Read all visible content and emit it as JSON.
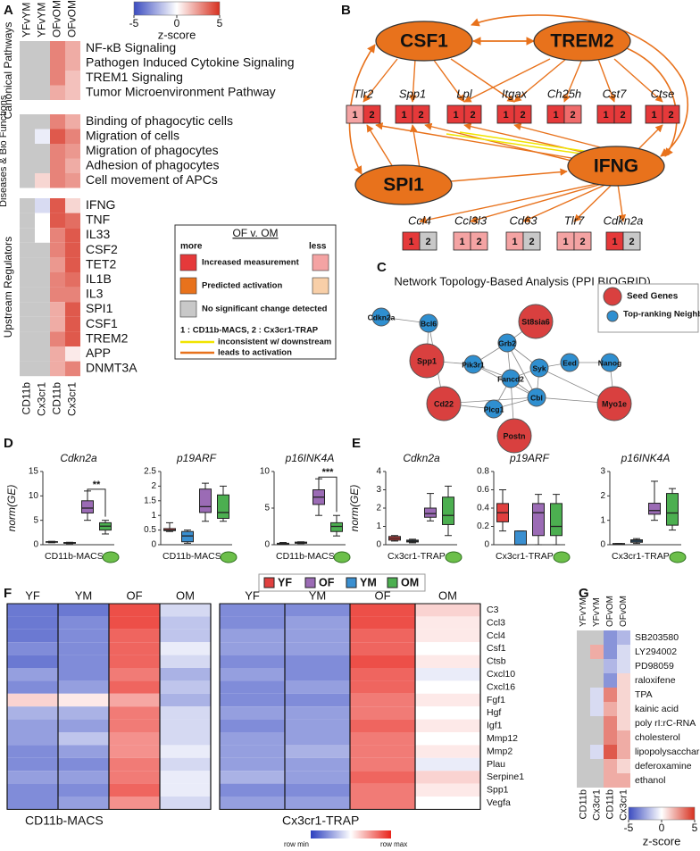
{
  "panel_labels": [
    "A",
    "B",
    "C",
    "D",
    "E",
    "F",
    "G"
  ],
  "A": {
    "columns": [
      "YFvYM",
      "YFvYM",
      "OFvOM",
      "OFvOM"
    ],
    "column_sources": [
      "CD11b",
      "Cx3cr1",
      "CD11b",
      "Cx3cr1"
    ],
    "colorbar": {
      "label": "z-score",
      "lim": [
        -5,
        5
      ],
      "ticks": [
        -5,
        0,
        5
      ]
    },
    "sections": [
      {
        "name": "Canonical Pathways",
        "rows": [
          {
            "label": "NF-κB Signaling",
            "values": [
              null,
              null,
              3,
              2
            ]
          },
          {
            "label": "Pathogen Induced Cytokine Signaling",
            "values": [
              null,
              null,
              3,
              2
            ]
          },
          {
            "label": "TREM1 Signaling",
            "values": [
              null,
              null,
              3,
              1.5
            ]
          },
          {
            "label": "Tumor Microenvironment Pathway",
            "values": [
              null,
              null,
              2,
              1.5
            ]
          }
        ]
      },
      {
        "name": "Diseases & Bio Functions",
        "rows": [
          {
            "label": "Binding of phagocytic cells",
            "values": [
              null,
              null,
              3,
              2
            ]
          },
          {
            "label": "Migration of cells",
            "values": [
              null,
              -0.5,
              4,
              3
            ]
          },
          {
            "label": "Migration of phagocytes",
            "values": [
              null,
              null,
              3,
              2.5
            ]
          },
          {
            "label": "Adhesion of phagocytes",
            "values": [
              null,
              null,
              3,
              2
            ]
          },
          {
            "label": "Cell movement of APCs",
            "values": [
              null,
              1,
              3,
              2.5
            ]
          }
        ]
      },
      {
        "name": "Upstream Regulators",
        "rows": [
          {
            "label": "IFNG",
            "values": [
              null,
              -1,
              4,
              1
            ]
          },
          {
            "label": "TNF",
            "values": [
              null,
              0,
              4,
              3.5
            ]
          },
          {
            "label": "IL33",
            "values": [
              null,
              0,
              3,
              4
            ]
          },
          {
            "label": "CSF2",
            "values": [
              null,
              null,
              3,
              4
            ]
          },
          {
            "label": "TET2",
            "values": [
              null,
              null,
              2.5,
              4
            ]
          },
          {
            "label": "IL1B",
            "values": [
              null,
              null,
              3,
              3.5
            ]
          },
          {
            "label": "IL3",
            "values": [
              null,
              null,
              3,
              3
            ]
          },
          {
            "label": "SPI1",
            "values": [
              null,
              null,
              2,
              4
            ]
          },
          {
            "label": "CSF1",
            "values": [
              null,
              null,
              2,
              4
            ]
          },
          {
            "label": "TREM2",
            "values": [
              null,
              null,
              3,
              4
            ]
          },
          {
            "label": "APP",
            "values": [
              null,
              null,
              2,
              0.5
            ]
          },
          {
            "label": "DNMT3A",
            "values": [
              null,
              null,
              2,
              3
            ]
          }
        ]
      }
    ]
  },
  "legend": {
    "title": "OF v. OM",
    "more": "more",
    "less": "less",
    "items": [
      {
        "label": "Increased measurement",
        "colors": [
          "#e5393a",
          "#f4a3a3"
        ]
      },
      {
        "label": "Predicted activation",
        "colors": [
          "#e8721c",
          "#f8cfa8"
        ]
      },
      {
        "label": "No significant change detected",
        "colors": [
          "#c8c8c8"
        ]
      }
    ],
    "note": "1 : CD11b-MACS, 2 : Cx3cr1-TRAP",
    "lines": [
      {
        "label": "inconsistent w/ downstream",
        "color": "#f0e400"
      },
      {
        "label": "leads to activation",
        "color": "#e8721c"
      }
    ]
  },
  "B": {
    "regulators": [
      "CSF1",
      "TREM2",
      "SPI1",
      "IFNG"
    ],
    "box_labels": [
      "1",
      "2"
    ],
    "genes_top": [
      {
        "name": "Tlr2",
        "colors": [
          "#f4a3a3",
          "#e5393a"
        ]
      },
      {
        "name": "Spp1",
        "colors": [
          "#e5393a",
          "#e5393a"
        ]
      },
      {
        "name": "Lpl",
        "colors": [
          "#e5393a",
          "#e5393a"
        ]
      },
      {
        "name": "Itgax",
        "colors": [
          "#e5393a",
          "#e5393a"
        ]
      },
      {
        "name": "Ch25h",
        "colors": [
          "#e5393a",
          "#ef6b6b"
        ]
      },
      {
        "name": "Cst7",
        "colors": [
          "#e5393a",
          "#e5393a"
        ]
      },
      {
        "name": "Ctse",
        "colors": [
          "#e5393a",
          "#e5393a"
        ]
      }
    ],
    "genes_bottom": [
      {
        "name": "Ccl4",
        "colors": [
          "#e5393a",
          "#c8c8c8"
        ]
      },
      {
        "name": "Ccl3l3",
        "colors": [
          "#f4a3a3",
          "#f4a3a3"
        ]
      },
      {
        "name": "Cd63",
        "colors": [
          "#f4a3a3",
          "#c8c8c8"
        ]
      },
      {
        "name": "Tlr7",
        "colors": [
          "#f4a3a3",
          "#f4a3a3"
        ]
      },
      {
        "name": "Cdkn2a",
        "colors": [
          "#e5393a",
          "#c8c8c8"
        ]
      }
    ]
  },
  "C": {
    "title": "Network Topology-Based Analysis (PPI BIOGRID)",
    "legend": [
      "Seed Genes",
      "Top-ranking Neighbors"
    ],
    "seed_genes": [
      "St8sia6",
      "Spp1",
      "Cd22",
      "Postn",
      "Myo1e"
    ],
    "neighbors": [
      "Cdkn2a",
      "Bcl6",
      "Grb2",
      "Pik3r1",
      "Fancd2",
      "Syk",
      "Eed",
      "Nanog",
      "Cbl",
      "Plcg1"
    ]
  },
  "groups": [
    {
      "name": "YF",
      "color": "#e0403f"
    },
    {
      "name": "OF",
      "color": "#9b6bb5"
    },
    {
      "name": "YM",
      "color": "#3a8fd0"
    },
    {
      "name": "OM",
      "color": "#4caf50"
    }
  ],
  "D": {
    "ylabel": "norm(GE)",
    "xlabel": "CD11b-MACS",
    "plots": [
      {
        "title": "Cdkn2a",
        "ylim": [
          0,
          15
        ],
        "yticks": [
          0,
          5,
          10,
          15
        ],
        "significance": "**",
        "boxes": [
          {
            "min": 0.4,
            "q1": 0.5,
            "median": 0.6,
            "q3": 0.6,
            "max": 0.7
          },
          {
            "min": 0.2,
            "q1": 0.3,
            "median": 0.35,
            "q3": 0.45,
            "max": 0.5
          },
          {
            "min": 5,
            "q1": 6.5,
            "median": 7.5,
            "q3": 9,
            "max": 11
          },
          {
            "min": 2.2,
            "q1": 3,
            "median": 3.8,
            "q3": 4.5,
            "max": 5
          }
        ]
      },
      {
        "title": "p19ARF",
        "ylim": [
          0,
          2.5
        ],
        "yticks": [
          0,
          0.5,
          1,
          1.5,
          2,
          2.5
        ],
        "boxes": [
          {
            "min": 0.45,
            "q1": 0.48,
            "median": 0.5,
            "q3": 0.55,
            "max": 0.75
          },
          {
            "min": 0.05,
            "q1": 0.1,
            "median": 0.3,
            "q3": 0.45,
            "max": 0.5
          },
          {
            "min": 0.8,
            "q1": 1.1,
            "median": 1.3,
            "q3": 1.9,
            "max": 2.1
          },
          {
            "min": 0.8,
            "q1": 0.9,
            "median": 1.1,
            "q3": 1.7,
            "max": 2
          }
        ]
      },
      {
        "title": "p16INK4A",
        "ylim": [
          0,
          10
        ],
        "yticks": [
          0,
          5,
          10
        ],
        "significance": "***",
        "boxes": [
          {
            "min": 0.05,
            "q1": 0.1,
            "median": 0.15,
            "q3": 0.2,
            "max": 0.3
          },
          {
            "min": 0.15,
            "q1": 0.2,
            "median": 0.3,
            "q3": 0.35,
            "max": 0.4
          },
          {
            "min": 4,
            "q1": 5.5,
            "median": 6.5,
            "q3": 7.5,
            "max": 9
          },
          {
            "min": 1.2,
            "q1": 1.8,
            "median": 2.5,
            "q3": 3,
            "max": 4
          }
        ]
      }
    ]
  },
  "E": {
    "ylabel": "norm(GE)",
    "xlabel": "Cx3cr1-TRAP",
    "plots": [
      {
        "title": "Cdkn2a",
        "ylim": [
          0,
          4
        ],
        "yticks": [
          0,
          1,
          2,
          3,
          4
        ],
        "boxes": [
          {
            "min": 0.2,
            "q1": 0.25,
            "median": 0.35,
            "q3": 0.45,
            "max": 0.5
          },
          {
            "min": 0.1,
            "q1": 0.15,
            "median": 0.2,
            "q3": 0.25,
            "max": 0.3
          },
          {
            "min": 1.3,
            "q1": 1.5,
            "median": 1.7,
            "q3": 2,
            "max": 2.8
          },
          {
            "min": 0.5,
            "q1": 1.1,
            "median": 1.6,
            "q3": 2.6,
            "max": 3.2
          }
        ]
      },
      {
        "title": "p19ARF",
        "ylim": [
          0,
          0.8
        ],
        "yticks": [
          0,
          0.2,
          0.4,
          0.6,
          0.8
        ],
        "boxes": [
          {
            "min": 0.15,
            "q1": 0.25,
            "median": 0.35,
            "q3": 0.45,
            "max": 0.6
          },
          {
            "min": 0,
            "q1": 0,
            "median": 0,
            "q3": 0.15,
            "max": 0.15
          },
          {
            "min": 0,
            "q1": 0.1,
            "median": 0.35,
            "q3": 0.45,
            "max": 0.55
          },
          {
            "min": 0,
            "q1": 0.1,
            "median": 0.2,
            "q3": 0.45,
            "max": 0.55
          }
        ]
      },
      {
        "title": "p16INK4A",
        "ylim": [
          0,
          3
        ],
        "yticks": [
          0,
          1,
          2,
          3
        ],
        "boxes": [
          {
            "min": 0,
            "q1": 0,
            "median": 0.02,
            "q3": 0.05,
            "max": 0.05
          },
          {
            "min": 0.05,
            "q1": 0.1,
            "median": 0.15,
            "q3": 0.2,
            "max": 0.25
          },
          {
            "min": 1,
            "q1": 1.25,
            "median": 1.4,
            "q3": 1.7,
            "max": 2.6
          },
          {
            "min": 0.6,
            "q1": 0.8,
            "median": 1.3,
            "q3": 2.1,
            "max": 2.3
          }
        ]
      }
    ]
  },
  "F": {
    "groups": [
      "YF",
      "YM",
      "OF",
      "OM"
    ],
    "genes": [
      "C3",
      "Ccl3",
      "Ccl4",
      "Csf1",
      "Ctsb",
      "Cxcl10",
      "Cxcl16",
      "Fgf1",
      "Hgf",
      "Igf1",
      "Mmp12",
      "Mmp2",
      "Plau",
      "Serpine1",
      "Spp1",
      "Vegfa"
    ],
    "colorbar": [
      "row min",
      "row max"
    ],
    "datasets": [
      {
        "name": "CD11b-MACS",
        "values": [
          [
            -0.7,
            -0.7,
            0.8,
            -0.2
          ],
          [
            -0.7,
            -0.6,
            0.8,
            -0.3
          ],
          [
            -0.7,
            -0.6,
            0.7,
            -0.3
          ],
          [
            -0.6,
            -0.6,
            0.7,
            -0.1
          ],
          [
            -0.7,
            -0.6,
            0.7,
            -0.2
          ],
          [
            -0.5,
            -0.6,
            0.6,
            -0.4
          ],
          [
            -0.6,
            -0.5,
            0.7,
            -0.3
          ],
          [
            0.2,
            0.1,
            0.4,
            -0.4
          ],
          [
            -0.4,
            -0.4,
            0.6,
            -0.2
          ],
          [
            -0.5,
            -0.5,
            0.6,
            -0.2
          ],
          [
            -0.5,
            -0.3,
            0.5,
            -0.2
          ],
          [
            -0.6,
            -0.5,
            0.5,
            -0.1
          ],
          [
            -0.6,
            -0.6,
            0.6,
            -0.2
          ],
          [
            -0.5,
            -0.5,
            0.6,
            -0.1
          ],
          [
            -0.6,
            -0.6,
            0.7,
            -0.1
          ],
          [
            -0.6,
            -0.5,
            0.5,
            -0.2
          ]
        ]
      },
      {
        "name": "Cx3cr1-TRAP",
        "values": [
          [
            -0.6,
            -0.6,
            0.8,
            0.2
          ],
          [
            -0.6,
            -0.5,
            0.8,
            0.1
          ],
          [
            -0.5,
            -0.5,
            0.7,
            0.1
          ],
          [
            -0.5,
            -0.5,
            0.7,
            0
          ],
          [
            -0.6,
            -0.6,
            0.8,
            0.1
          ],
          [
            -0.5,
            -0.6,
            0.7,
            -0.1
          ],
          [
            -0.6,
            -0.5,
            0.7,
            0
          ],
          [
            -0.6,
            -0.6,
            0.6,
            0.1
          ],
          [
            -0.5,
            -0.5,
            0.6,
            0
          ],
          [
            -0.6,
            -0.5,
            0.7,
            0.1
          ],
          [
            -0.5,
            -0.5,
            0.6,
            0
          ],
          [
            -0.5,
            -0.4,
            0.6,
            0.1
          ],
          [
            -0.5,
            -0.5,
            0.6,
            -0.1
          ],
          [
            -0.4,
            -0.5,
            0.7,
            0.2
          ],
          [
            -0.6,
            -0.6,
            0.6,
            0.1
          ],
          [
            -0.5,
            -0.5,
            0.6,
            0
          ]
        ]
      }
    ]
  },
  "G": {
    "columns": [
      "YFvYM",
      "YFvYM",
      "OFvOM",
      "OFvOM"
    ],
    "column_sources": [
      "CD11b",
      "Cx3cr1",
      "CD11b",
      "Cx3cr1"
    ],
    "colorbar": {
      "label": "z-score",
      "lim": [
        -5,
        5
      ],
      "ticks": [
        -5,
        0,
        5
      ]
    },
    "rows": [
      {
        "label": "SB203580",
        "values": [
          null,
          null,
          -3,
          -2
        ]
      },
      {
        "label": "LY294002",
        "values": [
          null,
          2,
          -3,
          -1
        ]
      },
      {
        "label": "PD98059",
        "values": [
          null,
          null,
          -2,
          -1
        ]
      },
      {
        "label": "raloxifene",
        "values": [
          null,
          null,
          -3,
          1
        ]
      },
      {
        "label": "TPA",
        "values": [
          null,
          -1,
          3,
          1
        ]
      },
      {
        "label": "kainic acid",
        "values": [
          null,
          -1,
          2,
          1
        ]
      },
      {
        "label": "poly rI:rC-RNA",
        "values": [
          null,
          null,
          3,
          1
        ]
      },
      {
        "label": "cholesterol",
        "values": [
          null,
          null,
          3,
          2
        ]
      },
      {
        "label": "lipopolysaccharide",
        "values": [
          null,
          -1,
          4,
          2
        ]
      },
      {
        "label": "deferoxamine",
        "values": [
          null,
          null,
          2,
          1
        ]
      },
      {
        "label": "ethanol",
        "values": [
          null,
          null,
          2,
          2
        ]
      }
    ]
  }
}
